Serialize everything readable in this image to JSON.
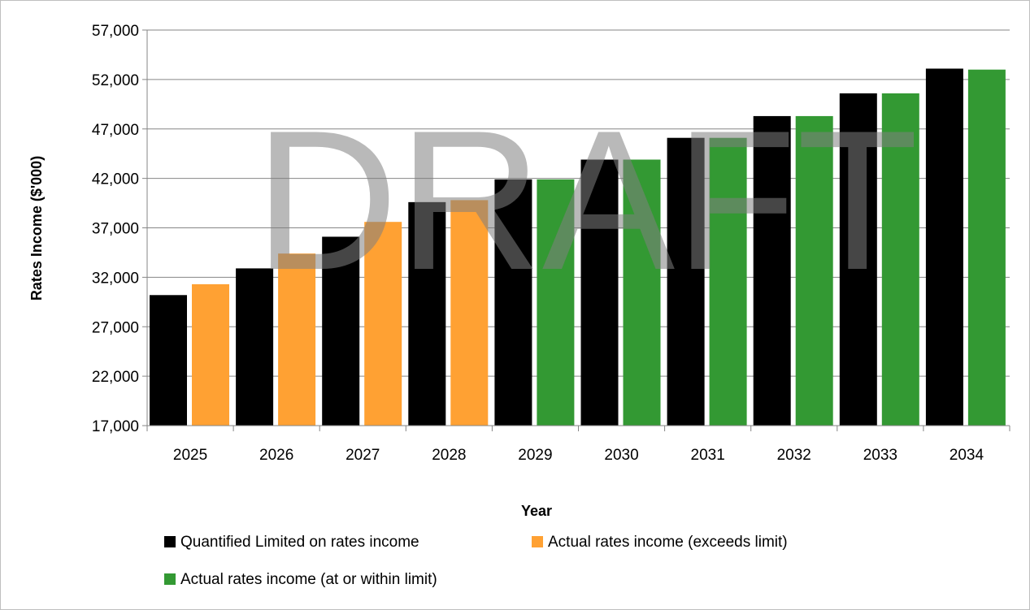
{
  "chart_data": {
    "type": "bar",
    "categories": [
      "2025",
      "2026",
      "2027",
      "2028",
      "2029",
      "2030",
      "2031",
      "2032",
      "2033",
      "2034"
    ],
    "series": [
      {
        "name": "Quantified Limited on rates income",
        "values": [
          30200,
          32900,
          36100,
          39600,
          41900,
          43900,
          46100,
          48300,
          50600,
          53100
        ]
      },
      {
        "name": "Actual rates income (exceeds limit)",
        "values": [
          31300,
          34400,
          37600,
          39800,
          null,
          null,
          null,
          null,
          null,
          null
        ]
      },
      {
        "name": "Actual rates income (at or within limit)",
        "values": [
          null,
          null,
          null,
          null,
          41900,
          43900,
          46100,
          48300,
          50600,
          53000
        ]
      }
    ],
    "colors": [
      "#000000",
      "#ffa133",
      "#339933"
    ],
    "ylim": [
      17000,
      57000
    ],
    "yticks": [
      17000,
      22000,
      27000,
      32000,
      37000,
      42000,
      47000,
      52000,
      57000
    ],
    "ytick_labels": [
      "17,000",
      "22,000",
      "27,000",
      "32,000",
      "37,000",
      "42,000",
      "47,000",
      "52,000",
      "57,000"
    ],
    "xlabel": "Year",
    "ylabel": "Rates Income ($'000)",
    "title": "",
    "grid": true,
    "legend_position": "bottom",
    "watermark": "DRAFT"
  }
}
